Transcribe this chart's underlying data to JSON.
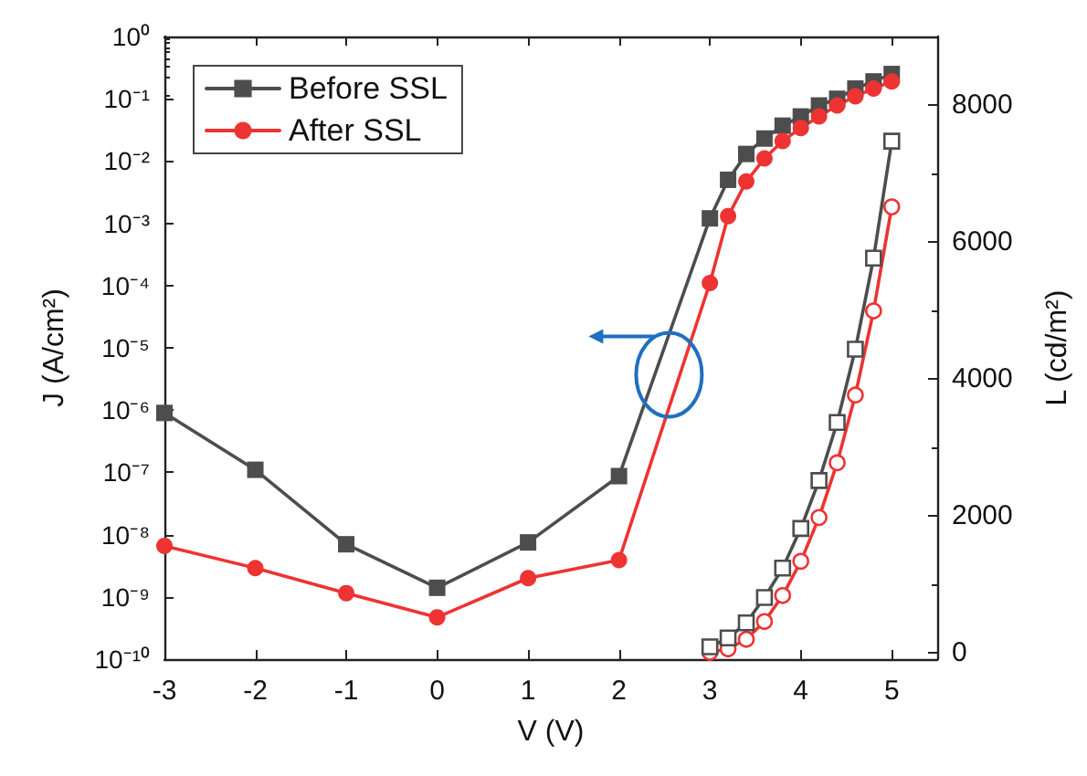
{
  "chart_data": {
    "type": "line",
    "xlabel": "V (V)",
    "ylabel": "J (A/cm²)",
    "y2label": "L (cd/m²)",
    "xlim": [
      -3,
      5.5
    ],
    "xticks": [
      -3,
      -2,
      -1,
      0,
      1,
      2,
      3,
      4,
      5
    ],
    "ylim": [
      1e-10,
      1
    ],
    "yticks": [
      {
        "value": 1e-10,
        "label": "10⁻¹⁰"
      },
      {
        "value": 1e-09,
        "label": "10⁻⁹"
      },
      {
        "value": 1e-08,
        "label": "10⁻⁸"
      },
      {
        "value": 1e-07,
        "label": "10⁻⁷"
      },
      {
        "value": 1e-06,
        "label": "10⁻⁶"
      },
      {
        "value": 1e-05,
        "label": "10⁻⁵"
      },
      {
        "value": 0.0001,
        "label": "10⁻⁴"
      },
      {
        "value": 0.001,
        "label": "10⁻³"
      },
      {
        "value": 0.01,
        "label": "10⁻²"
      },
      {
        "value": 0.1,
        "label": "10⁻¹"
      },
      {
        "value": 1,
        "label": "10⁰"
      }
    ],
    "y2lim": [
      -100,
      9000
    ],
    "y2ticks": [
      0,
      2000,
      4000,
      6000,
      8000
    ],
    "log": "y",
    "grid": false,
    "legend": "top left",
    "line_style": "solid",
    "series": [
      {
        "name": "Before SSL",
        "color": "#4d4d4d",
        "marker": "square",
        "x": [
          -3,
          -2,
          -1,
          0,
          1,
          2,
          3,
          3.2,
          3.4,
          3.6,
          3.8,
          4.0,
          4.2,
          4.4,
          4.6,
          4.8,
          5.0
        ],
        "values": [
          9e-07,
          1.1e-07,
          7e-09,
          1.4e-09,
          7.5e-09,
          8.7e-08,
          0.0012,
          0.005,
          0.013,
          0.023,
          0.037,
          0.052,
          0.078,
          0.1,
          0.146,
          0.19,
          0.25
        ]
      },
      {
        "name": "After SSL",
        "color": "#ee3333",
        "marker": "circle",
        "x": [
          -3,
          -2,
          -1,
          0,
          1,
          2,
          3,
          3.2,
          3.4,
          3.6,
          3.8,
          4.0,
          4.2,
          4.4,
          4.6,
          4.8,
          5.0
        ],
        "values": [
          6.6e-09,
          2.9e-09,
          1.15e-09,
          4.7e-10,
          2e-09,
          3.9e-09,
          0.00011,
          0.0013,
          0.0047,
          0.011,
          0.021,
          0.034,
          0.052,
          0.078,
          0.11,
          0.146,
          0.19
        ]
      },
      {
        "color": "#ee3333",
        "marker": "circle",
        "axis": "y2",
        "x": [
          3.0,
          3.2,
          3.4,
          3.6,
          3.8,
          4.0,
          4.2,
          4.4,
          4.6,
          4.8,
          5.0
        ],
        "values": [
          0,
          50,
          190,
          450,
          830,
          1330,
          1970,
          2770,
          3760,
          4990,
          6510
        ]
      },
      {
        "color": "#4d4d4d",
        "marker": "square",
        "axis": "y2",
        "x": [
          3.0,
          3.2,
          3.4,
          3.6,
          3.8,
          4.0,
          4.2,
          4.4,
          4.6,
          4.8,
          5.0
        ],
        "values": [
          80,
          210,
          430,
          800,
          1230,
          1810,
          2510,
          3360,
          4430,
          5760,
          7470
        ]
      }
    ]
  }
}
